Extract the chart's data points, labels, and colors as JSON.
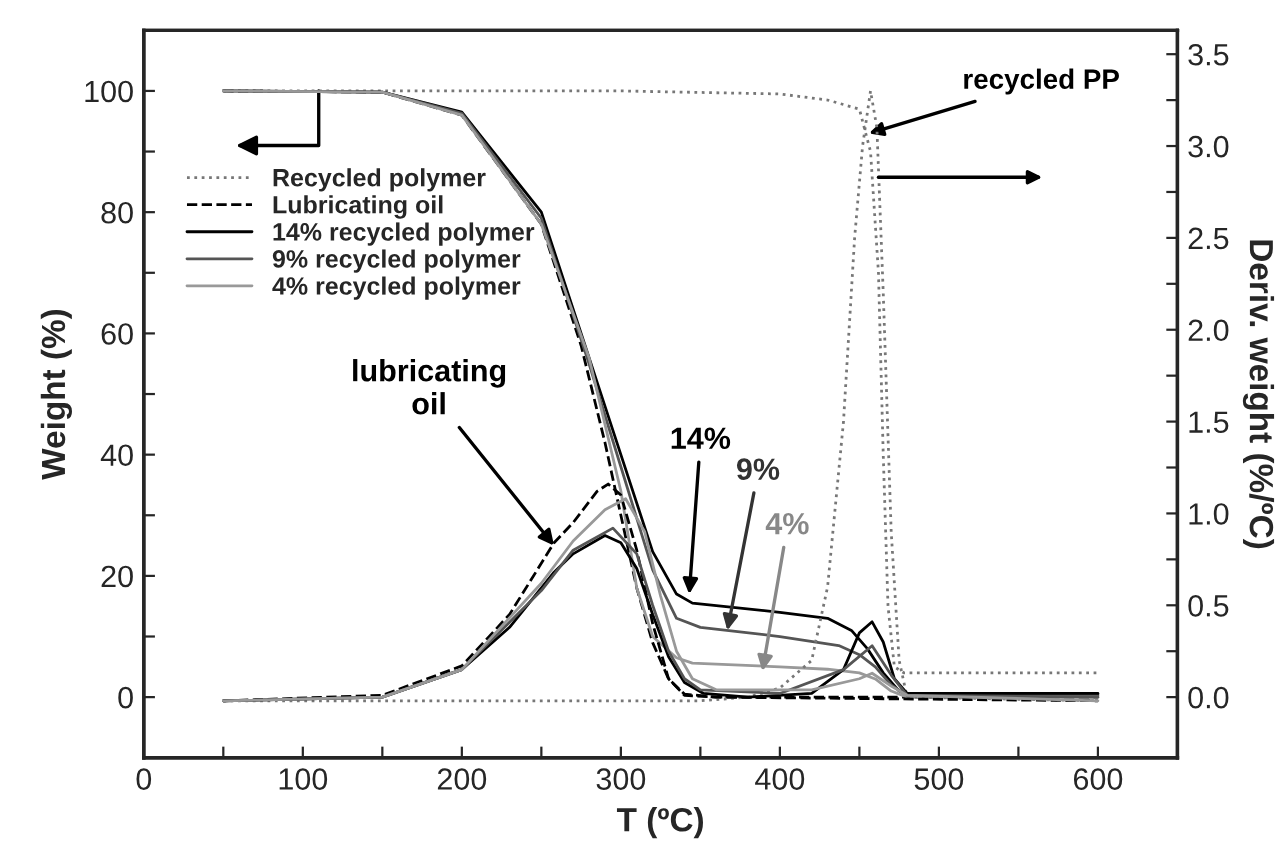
{
  "chart_data": {
    "type": "line",
    "xlabel": "T (ºC)",
    "ylabel": "Weight (%)",
    "y2label": "Deriv. weight (%/ºC)",
    "xlim": [
      0,
      650
    ],
    "xticks": [
      0,
      {
        "value": 50,
        "label": null
      },
      100,
      {
        "value": 150,
        "label": null
      },
      200,
      {
        "value": 250,
        "label": null
      },
      300,
      {
        "value": 350,
        "label": null
      },
      400,
      {
        "value": 450,
        "label": null
      },
      500,
      {
        "value": 550,
        "label": null
      },
      600
    ],
    "ylim": [
      -10,
      110
    ],
    "yticks": [
      0,
      {
        "value": 10,
        "label": null
      },
      20,
      {
        "value": 30,
        "label": null
      },
      40,
      {
        "value": 50,
        "label": null
      },
      60,
      {
        "value": 70,
        "label": null
      },
      80,
      {
        "value": 90,
        "label": null
      },
      100
    ],
    "y2lim": [
      -0.33,
      3.63
    ],
    "y2ticks": [
      {
        "value": 0,
        "label": "0.0"
      },
      {
        "value": 0.25,
        "label": null
      },
      {
        "value": 0.5,
        "label": "0.5"
      },
      {
        "value": 0.75,
        "label": null
      },
      {
        "value": 1,
        "label": "1.0"
      },
      {
        "value": 1.25,
        "label": null
      },
      {
        "value": 1.5,
        "label": "1.5"
      },
      {
        "value": 1.75,
        "label": null
      },
      {
        "value": 2,
        "label": "2.0"
      },
      {
        "value": 2.25,
        "label": null
      },
      {
        "value": 2.5,
        "label": "2.5"
      },
      {
        "value": 2.75,
        "label": null
      },
      {
        "value": 3,
        "label": "3.0"
      },
      {
        "value": 3.25,
        "label": null
      },
      {
        "value": 3.5,
        "label": "3.5"
      }
    ],
    "grid": false,
    "legend": "left",
    "marker": "none",
    "series": [
      {
        "name": "Recycled polymer",
        "color": "#777777",
        "line_style": "dotted",
        "x": [
          50,
          300,
          400,
          430,
          450,
          457,
          462,
          465,
          468,
          472,
          478,
          600
        ],
        "values": [
          100,
          100,
          99.5,
          98.5,
          97,
          90,
          70,
          40,
          15,
          5,
          4,
          4
        ]
      },
      {
        "name": "Lubricating oil",
        "color": "#000000",
        "line_style": "dashed",
        "x": [
          50,
          150,
          200,
          250,
          275,
          290,
          300,
          310,
          320,
          330,
          340,
          360,
          600
        ],
        "values": [
          100,
          99.8,
          96,
          78,
          58,
          42,
          30,
          18,
          9,
          3,
          0.5,
          0,
          0
        ]
      },
      {
        "name": "14% recycled polymer",
        "color": "#000000",
        "line_style": "solid",
        "x": [
          50,
          150,
          200,
          250,
          280,
          300,
          320,
          335,
          345,
          400,
          430,
          445,
          455,
          465,
          475,
          480,
          600
        ],
        "values": [
          100,
          99.8,
          96.5,
          80,
          56,
          40,
          24,
          17,
          15.5,
          14,
          13,
          11,
          8,
          4,
          1,
          0.5,
          0.5
        ]
      },
      {
        "name": "9% recycled polymer",
        "color": "#555555",
        "line_style": "solid",
        "x": [
          50,
          150,
          200,
          250,
          280,
          300,
          320,
          335,
          350,
          400,
          437,
          450,
          460,
          470,
          480,
          600
        ],
        "values": [
          100,
          99.8,
          96.3,
          79,
          55,
          38,
          21,
          13,
          11.5,
          10,
          8.5,
          7,
          5,
          2,
          0.3,
          0.3
        ]
      },
      {
        "name": "4% recycled polymer",
        "color": "#999999",
        "line_style": "solid",
        "x": [
          50,
          150,
          200,
          250,
          280,
          300,
          310,
          320,
          335,
          345,
          400,
          430,
          450,
          460,
          470,
          480,
          600
        ],
        "values": [
          100,
          99.8,
          96,
          78,
          56,
          34,
          18,
          10,
          6.5,
          5.6,
          5,
          4.6,
          4,
          3,
          1,
          0,
          0
        ]
      },
      {
        "color": "#777777",
        "line_style": "dotted",
        "axis": "y2",
        "x": [
          50,
          350,
          380,
          400,
          420,
          430,
          440,
          447,
          452,
          457,
          461,
          465,
          470,
          475,
          480,
          600
        ],
        "values": [
          -0.02,
          -0.02,
          0,
          0.05,
          0.2,
          0.6,
          1.5,
          2.5,
          3.0,
          3.3,
          3.1,
          2.2,
          0.9,
          0.2,
          0,
          -0.02
        ]
      },
      {
        "color": "#000000",
        "line_style": "dashed",
        "axis": "y2",
        "x": [
          50,
          150,
          200,
          230,
          258,
          270,
          285,
          292,
          300,
          310,
          320,
          330,
          340,
          360,
          600
        ],
        "values": [
          -0.02,
          0.01,
          0.17,
          0.45,
          0.84,
          0.95,
          1.12,
          1.16,
          1.1,
          0.8,
          0.4,
          0.1,
          0.01,
          0,
          -0.02
        ]
      },
      {
        "color": "#000000",
        "line_style": "solid",
        "axis": "y2",
        "x": [
          50,
          150,
          200,
          230,
          258,
          270,
          290,
          300,
          310,
          320,
          330,
          340,
          352,
          380,
          420,
          440,
          450,
          458,
          465,
          472,
          480,
          600
        ],
        "values": [
          -0.02,
          0,
          0.15,
          0.38,
          0.68,
          0.78,
          0.88,
          0.84,
          0.7,
          0.45,
          0.22,
          0.08,
          0.02,
          0,
          0.02,
          0.15,
          0.35,
          0.41,
          0.3,
          0.1,
          0.02,
          0.02
        ]
      },
      {
        "color": "#555555",
        "line_style": "solid",
        "axis": "y2",
        "x": [
          50,
          150,
          200,
          250,
          270,
          295,
          310,
          320,
          330,
          340,
          350,
          400,
          440,
          458,
          470,
          480,
          600
        ],
        "values": [
          -0.02,
          0,
          0.15,
          0.58,
          0.8,
          0.92,
          0.78,
          0.5,
          0.25,
          0.1,
          0.04,
          0.02,
          0.15,
          0.28,
          0.12,
          0.01,
          0
        ]
      },
      {
        "color": "#999999",
        "line_style": "solid",
        "axis": "y2",
        "x": [
          50,
          150,
          200,
          250,
          270,
          290,
          303,
          315,
          325,
          335,
          345,
          360,
          420,
          450,
          458,
          470,
          480,
          600
        ],
        "values": [
          -0.02,
          0,
          0.15,
          0.62,
          0.85,
          1.02,
          1.08,
          0.9,
          0.55,
          0.25,
          0.1,
          0.04,
          0.04,
          0.1,
          0.13,
          0.06,
          0.01,
          -0.02
        ]
      }
    ],
    "annotations": [
      {
        "text": "lubricating\noil",
        "x": 258,
        "y": 25
      },
      {
        "text": "14%",
        "x": 343,
        "y": 17
      },
      {
        "text": "9%",
        "x": 367,
        "y": 11
      },
      {
        "text": "4%",
        "x": 389,
        "y": 4.3
      },
      {
        "text": "recycled PP",
        "x": 456,
        "y": 93
      }
    ]
  }
}
